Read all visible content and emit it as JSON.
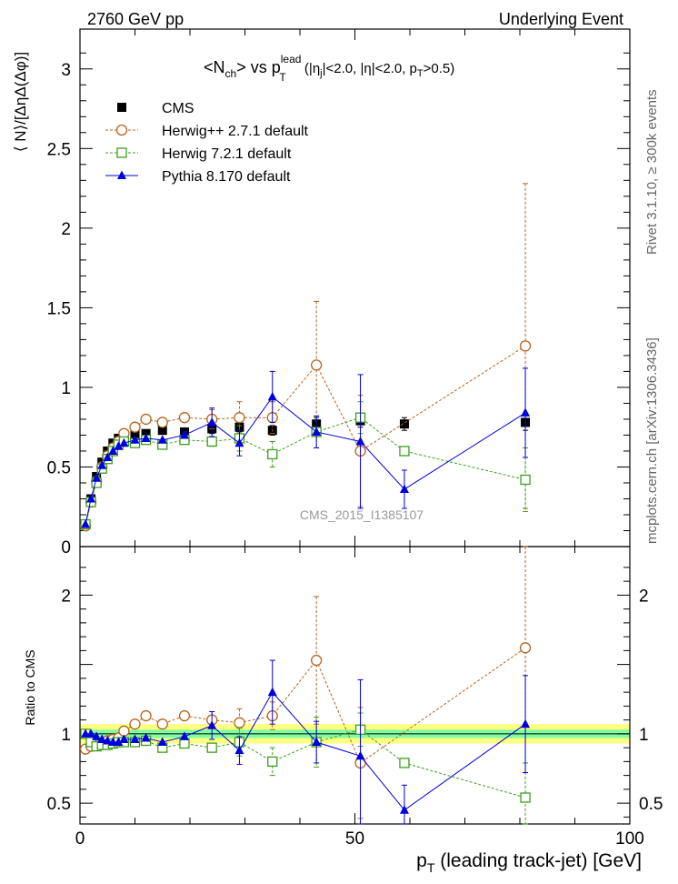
{
  "header": {
    "left": "2760 GeV pp",
    "right": "Underlying Event"
  },
  "side_labels": {
    "rivet": "Rivet 3.1.10, ≥ 300k events",
    "mcplots": "mcplots.cern.ch [arXiv:1306.3436]"
  },
  "watermark": "CMS_2015_I1385107",
  "title": {
    "main": "<N",
    "sub_ch": "ch",
    "vs": "> vs p",
    "sub_T": "T",
    "sup_lead": "lead",
    "cuts_a": " (|η",
    "sub_j": "j",
    "cuts_b": "|<2.0, |η|<2.0, p",
    "sub_T2": "T",
    "cuts_c": ">0.5)"
  },
  "axes": {
    "ylabel_top": "⟨ N⟩/[ΔηΔ(Δφ)]",
    "ylabel_bottom": "Ratio to CMS",
    "xlabel_main": "p",
    "xlabel_sub": "T",
    "xlabel_rest": " (leading track-jet) [GeV]",
    "top_yticks": [
      "0.5",
      "1",
      "1.5",
      "2",
      "2.5",
      "3"
    ],
    "top_zero_tick": "0",
    "bottom_yticks": [
      "0.5",
      "1",
      "2"
    ],
    "xticks": [
      "0",
      "50",
      "100"
    ]
  },
  "legend": [
    {
      "label": "CMS",
      "color": "#000000",
      "marker": "filled-square"
    },
    {
      "label": "Herwig++ 2.7.1 default",
      "color": "#b8621b",
      "marker": "open-circle"
    },
    {
      "label": "Herwig 7.2.1 default",
      "color": "#3d9e1d",
      "marker": "open-square"
    },
    {
      "label": "Pythia 8.170 default",
      "color": "#0000dd",
      "marker": "filled-triangle"
    }
  ],
  "chart_data": [
    {
      "type": "scatter",
      "panel": "main",
      "xlim": [
        0,
        100
      ],
      "ylim": [
        0,
        3.25
      ],
      "x": [
        1,
        2,
        3,
        4,
        5,
        6,
        7,
        8,
        10,
        12,
        15,
        19,
        24,
        29,
        35,
        43,
        51,
        59,
        81
      ],
      "series": [
        {
          "name": "CMS",
          "y": [
            0.14,
            0.3,
            0.44,
            0.53,
            0.6,
            0.65,
            0.68,
            0.7,
            0.7,
            0.71,
            0.73,
            0.72,
            0.74,
            0.75,
            0.73,
            0.77,
            0.79,
            0.77,
            0.78
          ],
          "err": [
            0.02,
            0.02,
            0.02,
            0.02,
            0.02,
            0.02,
            0.02,
            0.02,
            0.02,
            0.02,
            0.02,
            0.02,
            0.03,
            0.03,
            0.03,
            0.04,
            0.04,
            0.04,
            0.05
          ]
        },
        {
          "name": "Herwig++ 2.7.1 default",
          "y": [
            0.13,
            0.28,
            0.41,
            0.5,
            0.57,
            0.62,
            0.66,
            0.71,
            0.75,
            0.8,
            0.78,
            0.81,
            0.8,
            0.81,
            0.81,
            1.14,
            0.6,
            null,
            1.26
          ],
          "err": [
            0.01,
            0.01,
            0.01,
            0.01,
            0.01,
            0.01,
            0.01,
            0.01,
            0.01,
            0.01,
            0.01,
            0.01,
            0.06,
            0.1,
            0.1,
            0.4,
            0.35,
            0,
            1.02
          ]
        },
        {
          "name": "Herwig 7.2.1 default",
          "y": [
            0.14,
            0.28,
            0.4,
            0.49,
            0.55,
            0.6,
            0.64,
            0.66,
            0.65,
            0.67,
            0.64,
            0.67,
            0.66,
            0.68,
            0.58,
            0.72,
            0.81,
            0.6,
            0.42
          ],
          "err": [
            0.01,
            0.01,
            0.01,
            0.01,
            0.01,
            0.01,
            0.01,
            0.01,
            0.01,
            0.01,
            0.01,
            0.01,
            0.03,
            0.08,
            0.08,
            0.1,
            0.1,
            0.0,
            0.2
          ]
        },
        {
          "name": "Pythia 8.170 default",
          "y": [
            0.14,
            0.3,
            0.43,
            0.51,
            0.56,
            0.6,
            0.63,
            0.65,
            0.67,
            0.68,
            0.67,
            0.7,
            0.78,
            0.65,
            0.94,
            0.72,
            0.66,
            0.36,
            0.84
          ],
          "err": [
            0.01,
            0.01,
            0.01,
            0.01,
            0.01,
            0.01,
            0.01,
            0.01,
            0.01,
            0.01,
            0.01,
            0.02,
            0.09,
            0.08,
            0.16,
            0.1,
            0.42,
            0.12,
            0.28
          ]
        }
      ]
    },
    {
      "type": "scatter",
      "panel": "ratio",
      "xlim": [
        0,
        100
      ],
      "ylim": [
        0.35,
        2.35
      ],
      "band": {
        "inner": [
          0.97,
          1.03
        ],
        "outer": [
          0.93,
          1.07
        ],
        "inner_color": "#80ffa0",
        "outer_color": "#ffff80"
      },
      "x": [
        1,
        2,
        3,
        4,
        5,
        6,
        7,
        8,
        10,
        12,
        15,
        19,
        24,
        29,
        35,
        43,
        51,
        59,
        81
      ],
      "series": [
        {
          "name": "Herwig++ 2.7.1 default",
          "y": [
            0.89,
            0.91,
            0.93,
            0.93,
            0.95,
            0.96,
            0.97,
            1.02,
            1.07,
            1.13,
            1.07,
            1.13,
            1.1,
            1.08,
            1.13,
            1.53,
            0.79,
            null,
            1.62
          ],
          "err": [
            0.01,
            0.01,
            0.01,
            0.01,
            0.01,
            0.01,
            0.01,
            0.01,
            0.01,
            0.01,
            0.01,
            0.01,
            0.06,
            0.1,
            0.1,
            0.46,
            0.4,
            0,
            0.9
          ]
        },
        {
          "name": "Herwig 7.2.1 default",
          "y": [
            1.0,
            0.94,
            0.91,
            0.92,
            0.92,
            0.93,
            0.94,
            0.94,
            0.94,
            0.95,
            0.9,
            0.93,
            0.9,
            0.94,
            0.8,
            0.94,
            1.03,
            0.79,
            0.54
          ],
          "err": [
            0.01,
            0.01,
            0.01,
            0.01,
            0.01,
            0.01,
            0.01,
            0.01,
            0.01,
            0.01,
            0.01,
            0.01,
            0.03,
            0.1,
            0.1,
            0.18,
            0.12,
            0.0,
            0.25
          ]
        },
        {
          "name": "Pythia 8.170 default",
          "y": [
            1.0,
            1.0,
            0.98,
            0.96,
            0.95,
            0.94,
            0.94,
            0.96,
            0.96,
            0.97,
            0.94,
            0.98,
            1.06,
            0.88,
            1.3,
            0.94,
            0.84,
            0.45,
            1.07
          ],
          "err": [
            0.01,
            0.01,
            0.01,
            0.01,
            0.01,
            0.01,
            0.01,
            0.01,
            0.01,
            0.01,
            0.01,
            0.02,
            0.1,
            0.1,
            0.23,
            0.15,
            0.55,
            0.18,
            0.35
          ]
        }
      ]
    }
  ]
}
